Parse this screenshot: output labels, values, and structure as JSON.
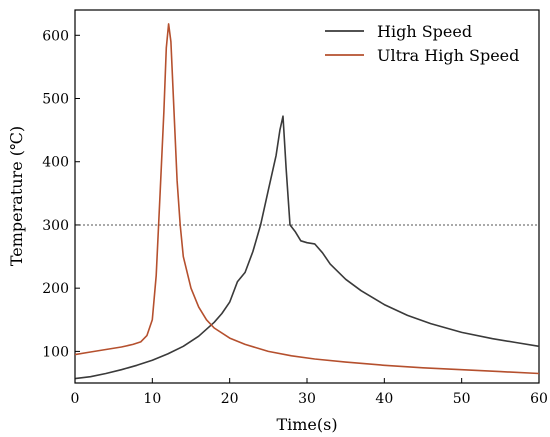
{
  "chart_data": {
    "type": "line",
    "title": "",
    "xlabel": "Time(s)",
    "ylabel": "Temperature (℃)",
    "xlim": [
      0,
      60
    ],
    "ylim": [
      50,
      640
    ],
    "x_ticks": [
      0,
      10,
      20,
      30,
      40,
      50,
      60
    ],
    "y_ticks": [
      100,
      200,
      300,
      400,
      500,
      600
    ],
    "grid": false,
    "legend_position": "top-right",
    "reference_line": {
      "y": 300,
      "style": "dotted",
      "color": "#555555"
    },
    "series": [
      {
        "name": "High Speed",
        "color": "#3a3a3a",
        "points": [
          [
            0,
            57
          ],
          [
            2,
            60
          ],
          [
            4,
            65
          ],
          [
            6,
            71
          ],
          [
            8,
            78
          ],
          [
            10,
            86
          ],
          [
            12,
            96
          ],
          [
            14,
            108
          ],
          [
            16,
            124
          ],
          [
            18,
            146
          ],
          [
            19,
            160
          ],
          [
            20,
            178
          ],
          [
            21,
            210
          ],
          [
            22,
            225
          ],
          [
            23,
            258
          ],
          [
            24,
            300
          ],
          [
            25,
            355
          ],
          [
            26,
            410
          ],
          [
            26.5,
            450
          ],
          [
            26.9,
            472
          ],
          [
            27.3,
            390
          ],
          [
            27.8,
            300
          ],
          [
            28.5,
            289
          ],
          [
            29.2,
            275
          ],
          [
            30,
            272
          ],
          [
            31,
            270
          ],
          [
            32,
            256
          ],
          [
            33,
            238
          ],
          [
            35,
            214
          ],
          [
            37,
            196
          ],
          [
            40,
            174
          ],
          [
            43,
            157
          ],
          [
            46,
            144
          ],
          [
            50,
            130
          ],
          [
            54,
            120
          ],
          [
            57,
            114
          ],
          [
            60,
            108
          ]
        ]
      },
      {
        "name": "Ultra High Speed",
        "color": "#b5502e",
        "points": [
          [
            0,
            95
          ],
          [
            2,
            99
          ],
          [
            4,
            103
          ],
          [
            6,
            107
          ],
          [
            7.5,
            111
          ],
          [
            8.5,
            115
          ],
          [
            9.3,
            125
          ],
          [
            10,
            150
          ],
          [
            10.5,
            220
          ],
          [
            11,
            350
          ],
          [
            11.5,
            480
          ],
          [
            11.8,
            580
          ],
          [
            12.1,
            618
          ],
          [
            12.4,
            590
          ],
          [
            12.8,
            480
          ],
          [
            13.2,
            370
          ],
          [
            13.6,
            300
          ],
          [
            14,
            250
          ],
          [
            15,
            200
          ],
          [
            16,
            170
          ],
          [
            17,
            150
          ],
          [
            18,
            137
          ],
          [
            20,
            121
          ],
          [
            22,
            111
          ],
          [
            25,
            100
          ],
          [
            28,
            93
          ],
          [
            31,
            88
          ],
          [
            35,
            83
          ],
          [
            40,
            78
          ],
          [
            45,
            74
          ],
          [
            50,
            71
          ],
          [
            55,
            68
          ],
          [
            60,
            65
          ]
        ]
      }
    ]
  }
}
